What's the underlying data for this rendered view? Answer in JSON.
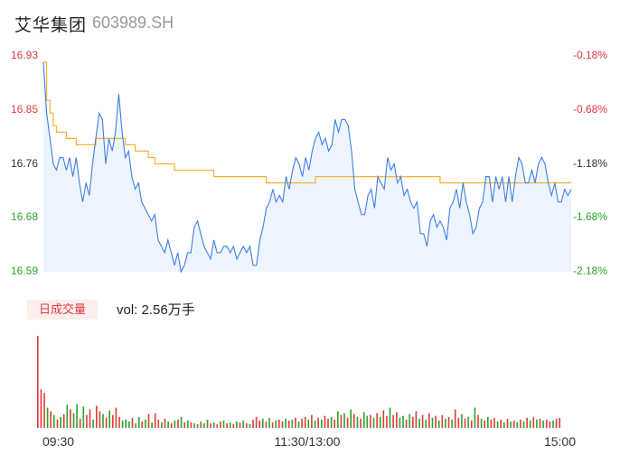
{
  "header": {
    "name": "艾华集团",
    "code": "603989.SH"
  },
  "volume_panel": {
    "tag_label": "日成交量",
    "vol_text": "vol: 2.56万手"
  },
  "colors": {
    "up": "#e03c3c",
    "down": "#2aa52a",
    "neutral": "#333333",
    "price_line": "#3f7fe6",
    "avg_line": "#f2b233",
    "area_fill": "#eaf1fc"
  },
  "chart_data": [
    {
      "type": "line",
      "title": "",
      "ylim": [
        16.59,
        16.93
      ],
      "y_ticks": [
        "16.93",
        "16.85",
        "16.76",
        "16.68",
        "16.59"
      ],
      "y_right_ticks": [
        "-0.18%",
        "-0.68%",
        "-1.18%",
        "-1.68%",
        "-2.18%"
      ],
      "x_ticks": [
        "09:30",
        "11:30/13:00",
        "15:00"
      ],
      "grid": false,
      "series": [
        {
          "values": [
            16.92,
            16.84,
            16.8,
            16.76,
            16.75,
            16.77,
            16.77,
            16.75,
            16.77,
            16.74,
            16.77,
            16.73,
            16.7,
            16.73,
            16.71,
            16.76,
            16.8,
            16.84,
            16.83,
            16.76,
            16.8,
            16.78,
            16.81,
            16.87,
            16.81,
            16.77,
            16.78,
            16.74,
            16.72,
            16.73,
            16.7,
            16.69,
            16.68,
            16.67,
            16.68,
            16.64,
            16.63,
            16.62,
            16.64,
            16.62,
            16.6,
            16.62,
            16.59,
            16.6,
            16.62,
            16.62,
            16.66,
            16.67,
            16.65,
            16.63,
            16.62,
            16.61,
            16.64,
            16.62,
            16.62,
            16.63,
            16.63,
            16.62,
            16.63,
            16.61,
            16.62,
            16.63,
            16.62,
            16.63,
            16.6,
            16.6,
            16.64,
            16.66,
            16.69,
            16.7,
            16.72,
            16.7,
            16.71,
            16.7,
            16.74,
            16.72,
            16.75,
            16.77,
            16.76,
            16.74,
            16.77,
            16.75,
            16.78,
            16.8,
            16.81,
            16.79,
            16.8,
            16.78,
            16.79,
            16.83,
            16.81,
            16.83,
            16.83,
            16.82,
            16.78,
            16.72,
            16.7,
            16.68,
            16.68,
            16.71,
            16.72,
            16.69,
            16.74,
            16.73,
            16.72,
            16.77,
            16.75,
            16.76,
            16.73,
            16.74,
            16.71,
            16.72,
            16.7,
            16.69,
            16.7,
            16.65,
            16.65,
            16.63,
            16.67,
            16.68,
            16.66,
            16.67,
            16.66,
            16.64,
            16.69,
            16.7,
            16.72,
            16.69,
            16.73,
            16.7,
            16.68,
            16.65,
            16.66,
            16.69,
            16.7,
            16.74,
            16.74,
            16.7,
            16.74,
            16.72,
            16.74,
            16.7,
            16.74,
            16.7,
            16.74,
            16.77,
            16.76,
            16.73,
            16.73,
            16.75,
            16.73,
            16.76,
            16.77,
            16.76,
            16.73,
            16.71,
            16.73,
            16.7,
            16.7,
            16.72,
            16.71,
            16.72
          ],
          "line_color": "#3f7fe6"
        },
        {
          "values": [
            16.92,
            16.86,
            16.84,
            16.82,
            16.81,
            16.81,
            16.81,
            16.8,
            16.8,
            16.8,
            16.79,
            16.79,
            16.79,
            16.79,
            16.79,
            16.79,
            16.8,
            16.8,
            16.8,
            16.8,
            16.8,
            16.8,
            16.8,
            16.8,
            16.8,
            16.79,
            16.79,
            16.79,
            16.78,
            16.78,
            16.78,
            16.78,
            16.77,
            16.77,
            16.76,
            16.76,
            16.76,
            16.76,
            16.76,
            16.76,
            16.75,
            16.75,
            16.75,
            16.75,
            16.75,
            16.75,
            16.75,
            16.75,
            16.75,
            16.75,
            16.75,
            16.75,
            16.74,
            16.74,
            16.74,
            16.74,
            16.74,
            16.74,
            16.74,
            16.74,
            16.74,
            16.74,
            16.74,
            16.74,
            16.74,
            16.74,
            16.74,
            16.74,
            16.73,
            16.73,
            16.73,
            16.73,
            16.73,
            16.73,
            16.73,
            16.73,
            16.73,
            16.73,
            16.73,
            16.73,
            16.73,
            16.73,
            16.73,
            16.74,
            16.74,
            16.74,
            16.74,
            16.74,
            16.74,
            16.74,
            16.74,
            16.74,
            16.74,
            16.74,
            16.74,
            16.74,
            16.74,
            16.74,
            16.74,
            16.74,
            16.74,
            16.74,
            16.74,
            16.74,
            16.74,
            16.74,
            16.74,
            16.74,
            16.74,
            16.74,
            16.74,
            16.74,
            16.74,
            16.74,
            16.74,
            16.74,
            16.74,
            16.74,
            16.74,
            16.74,
            16.74,
            16.73,
            16.73,
            16.73,
            16.73,
            16.73,
            16.73,
            16.73,
            16.73,
            16.73,
            16.73,
            16.73,
            16.73,
            16.73,
            16.73,
            16.73,
            16.73,
            16.73,
            16.73,
            16.73,
            16.73,
            16.73,
            16.73,
            16.73,
            16.73,
            16.73,
            16.73,
            16.73,
            16.73,
            16.73,
            16.73,
            16.73,
            16.73,
            16.73,
            16.73,
            16.73,
            16.73,
            16.73,
            16.73,
            16.73,
            16.73,
            16.73
          ],
          "line_color": "#f2b233"
        }
      ]
    },
    {
      "type": "bar",
      "title": "",
      "values": [
        100,
        42,
        38,
        22,
        18,
        14,
        9,
        12,
        15,
        25,
        20,
        16,
        26,
        10,
        23,
        14,
        20,
        9,
        24,
        18,
        15,
        11,
        19,
        14,
        22,
        12,
        8,
        9,
        7,
        11,
        5,
        12,
        7,
        9,
        15,
        6,
        16,
        9,
        6,
        10,
        7,
        5,
        8,
        9,
        12,
        6,
        8,
        6,
        5,
        4,
        7,
        5,
        9,
        5,
        6,
        4,
        7,
        8,
        5,
        6,
        4,
        7,
        6,
        8,
        5,
        4,
        9,
        12,
        8,
        10,
        7,
        11,
        6,
        8,
        9,
        7,
        10,
        8,
        9,
        11,
        7,
        10,
        12,
        9,
        14,
        8,
        11,
        9,
        13,
        10,
        12,
        9,
        18,
        14,
        16,
        11,
        20,
        15,
        12,
        10,
        17,
        13,
        14,
        11,
        16,
        12,
        19,
        13,
        22,
        14,
        17,
        11,
        13,
        9,
        15,
        12,
        18,
        10,
        14,
        9,
        16,
        11,
        13,
        8,
        14,
        10,
        12,
        9,
        20,
        11,
        15,
        10,
        12,
        8,
        22,
        14,
        10,
        8,
        12,
        9,
        11,
        7,
        9,
        6,
        10,
        7,
        8,
        6,
        9,
        7,
        11,
        8,
        12,
        9,
        10,
        8,
        9,
        7,
        8,
        10,
        11
      ],
      "directions": [
        "u",
        "u",
        "u",
        "d",
        "u",
        "d",
        "u",
        "d",
        "u",
        "d",
        "u",
        "d",
        "d",
        "u",
        "d",
        "u",
        "u",
        "d",
        "u",
        "u",
        "d",
        "u",
        "d",
        "u",
        "u",
        "u",
        "d",
        "d",
        "d",
        "u",
        "d",
        "d",
        "u",
        "d",
        "u",
        "d",
        "u",
        "u",
        "d",
        "u",
        "d",
        "u",
        "d",
        "u",
        "d",
        "u",
        "d",
        "u",
        "d",
        "u",
        "d",
        "u",
        "d",
        "u",
        "d",
        "u",
        "u",
        "d",
        "u",
        "d",
        "u",
        "d",
        "u",
        "d",
        "u",
        "d",
        "u",
        "u",
        "u",
        "d",
        "u",
        "d",
        "u",
        "d",
        "u",
        "u",
        "d",
        "u",
        "d",
        "u",
        "d",
        "u",
        "u",
        "d",
        "u",
        "d",
        "u",
        "d",
        "u",
        "u",
        "d",
        "u",
        "d",
        "u",
        "d",
        "u",
        "d",
        "u",
        "d",
        "u",
        "d",
        "d",
        "u",
        "d",
        "u",
        "d",
        "u",
        "u",
        "d",
        "u",
        "u",
        "d",
        "d",
        "u",
        "d",
        "u",
        "u",
        "d",
        "u",
        "d",
        "u",
        "d",
        "u",
        "d",
        "u",
        "d",
        "u",
        "d",
        "u",
        "u",
        "d",
        "u",
        "d",
        "u",
        "d",
        "u",
        "d",
        "u",
        "d",
        "u",
        "u",
        "d",
        "u",
        "d",
        "u",
        "d",
        "u",
        "d",
        "u",
        "d",
        "u",
        "d",
        "u",
        "d",
        "u",
        "d",
        "u",
        "u",
        "d",
        "u",
        "u"
      ]
    }
  ]
}
